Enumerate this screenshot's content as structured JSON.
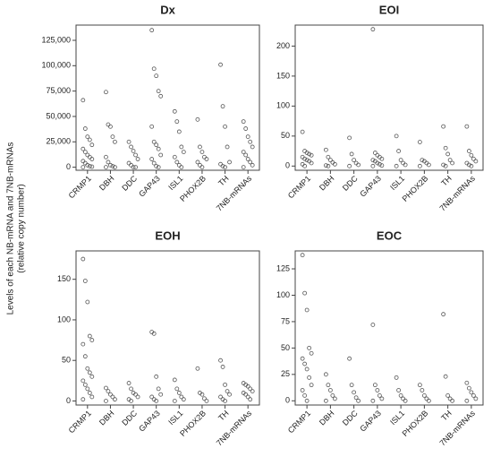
{
  "ylabel": [
    "Levels of each NB-mRNA and 7NB-mRNAs",
    "(relative copy number)"
  ],
  "chart_data": [
    {
      "type": "strip",
      "title": "Dx",
      "categories": [
        "CRMP1",
        "DBH",
        "DDC",
        "GAP43",
        "ISL1",
        "PHOX2B",
        "TH",
        "7NB-mRNAs"
      ],
      "values": [
        [
          66000,
          38000,
          30000,
          27000,
          22000,
          18000,
          15000,
          12000,
          10000,
          8000,
          6000,
          4000,
          2000,
          1000,
          500,
          0
        ],
        [
          74000,
          42000,
          40000,
          30000,
          25000,
          10000,
          5000,
          2000,
          1000,
          0,
          0
        ],
        [
          25000,
          20000,
          16000,
          12000,
          8000,
          4000,
          2000,
          0,
          0
        ],
        [
          135000,
          97000,
          90000,
          75000,
          70000,
          40000,
          25000,
          22000,
          18000,
          12000,
          8000,
          4000,
          1000,
          0
        ],
        [
          55000,
          45000,
          35000,
          20000,
          15000,
          10000,
          5000,
          2000,
          0
        ],
        [
          47000,
          20000,
          15000,
          10000,
          8000,
          5000,
          2000,
          0
        ],
        [
          101000,
          60000,
          40000,
          20000,
          5000,
          3000,
          1000,
          0
        ],
        [
          45000,
          38000,
          30000,
          25000,
          20000,
          15000,
          12000,
          8000,
          5000,
          2000,
          0
        ]
      ],
      "color": "#555555",
      "ylim": [
        -3000,
        140000
      ],
      "yticks": [
        0,
        {
          "value": 25000,
          "label": "25,000"
        },
        {
          "value": 50000,
          "label": "50,000"
        },
        {
          "value": 75000,
          "label": "75,000"
        },
        {
          "value": 100000,
          "label": "100,000"
        },
        {
          "value": 125000,
          "label": "125,000"
        }
      ]
    },
    {
      "type": "strip",
      "title": "EOI",
      "categories": [
        "CRMP1",
        "DBH",
        "DDC",
        "GAP43",
        "ISL1",
        "PHOX2B",
        "TH",
        "7NB-mRNAs"
      ],
      "values": [
        [
          57,
          25,
          22,
          20,
          18,
          15,
          12,
          10,
          8,
          5,
          3,
          0
        ],
        [
          27,
          15,
          10,
          6,
          3,
          1,
          0
        ],
        [
          47,
          20,
          10,
          5,
          2,
          0
        ],
        [
          228,
          22,
          18,
          15,
          12,
          10,
          8,
          5,
          3,
          1,
          0
        ],
        [
          50,
          25,
          10,
          5,
          2,
          0
        ],
        [
          40,
          10,
          8,
          5,
          2,
          0
        ],
        [
          66,
          30,
          20,
          10,
          5,
          2,
          0
        ],
        [
          66,
          25,
          18,
          12,
          8,
          5,
          2,
          0
        ]
      ],
      "color": "#555555",
      "ylim": [
        -7,
        235
      ],
      "yticks": [
        0,
        50,
        100,
        150,
        200
      ]
    },
    {
      "type": "strip",
      "title": "EOH",
      "categories": [
        "CRMP1",
        "DBH",
        "DDC",
        "GAP43",
        "ISL1",
        "PHOX2B",
        "TH",
        "7NB-mRNAs"
      ],
      "values": [
        [
          175,
          148,
          122,
          80,
          75,
          70,
          55,
          40,
          35,
          30,
          25,
          20,
          15,
          10,
          5,
          2
        ],
        [
          16,
          12,
          8,
          5,
          2,
          0
        ],
        [
          22,
          15,
          10,
          8,
          5,
          2,
          0
        ],
        [
          85,
          83,
          30,
          15,
          8,
          5,
          2,
          0
        ],
        [
          26,
          15,
          10,
          5,
          2,
          0
        ],
        [
          40,
          10,
          8,
          3,
          0
        ],
        [
          50,
          42,
          20,
          12,
          8,
          5,
          2,
          0
        ],
        [
          22,
          20,
          18,
          15,
          12,
          10,
          8,
          5,
          2
        ]
      ],
      "color": "#555555",
      "ylim": [
        -5,
        185
      ],
      "yticks": [
        0,
        50,
        100,
        150
      ]
    },
    {
      "type": "strip",
      "title": "EOC",
      "categories": [
        "CRMP1",
        "DBH",
        "DDC",
        "GAP43",
        "ISL1",
        "PHOX2B",
        "TH",
        "7NB-mRNAs"
      ],
      "values": [
        [
          138,
          102,
          86,
          50,
          45,
          40,
          35,
          30,
          22,
          15,
          10,
          5,
          0
        ],
        [
          25,
          15,
          10,
          5,
          2,
          0
        ],
        [
          40,
          15,
          8,
          3,
          0
        ],
        [
          72,
          15,
          10,
          5,
          2,
          0
        ],
        [
          22,
          10,
          5,
          2,
          0
        ],
        [
          15,
          10,
          5,
          2,
          0
        ],
        [
          82,
          23,
          5,
          2,
          0
        ],
        [
          17,
          12,
          8,
          5,
          2,
          0
        ]
      ],
      "color": "#555555",
      "ylim": [
        -4,
        142
      ],
      "yticks": [
        0,
        25,
        50,
        75,
        100,
        125
      ]
    }
  ]
}
